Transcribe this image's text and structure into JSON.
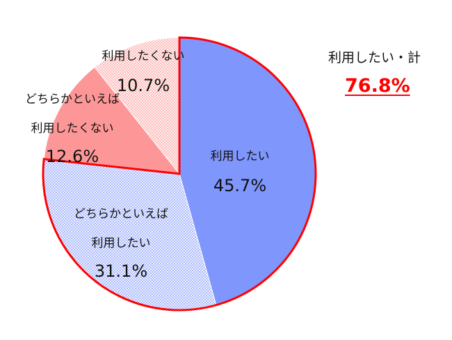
{
  "chart_data": {
    "type": "pie",
    "slices": [
      {
        "label_lines": [
          "利用したい"
        ],
        "value": 45.7,
        "value_label": "45.7%",
        "color": "#7f96fc",
        "pattern": "solid"
      },
      {
        "label_lines": [
          "どちらかといえば",
          "利用したい"
        ],
        "value": 31.1,
        "value_label": "31.1%",
        "color": "#7f96fc",
        "pattern": "dots"
      },
      {
        "label_lines": [
          "どちらかといえば",
          "利用したくない"
        ],
        "value": 12.6,
        "value_label": "12.6%",
        "color": "#fd9797",
        "pattern": "solid"
      },
      {
        "label_lines": [
          "利用したくない"
        ],
        "value": 10.7,
        "value_label": "10.7%",
        "color": "#fd9797",
        "pattern": "dots"
      }
    ],
    "highlight_outline_color": "#ff0000"
  },
  "summary": {
    "label": "利用したい・計",
    "value": "76.8%",
    "value_color": "#ff0000"
  }
}
